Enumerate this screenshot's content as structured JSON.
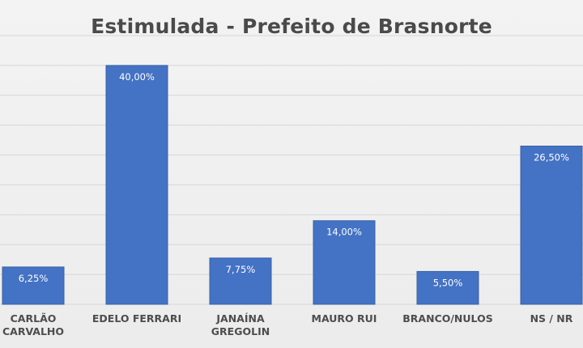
{
  "chart_data": {
    "type": "bar",
    "title": "Estimulada - Prefeito de Brasnorte",
    "categories": [
      [
        "CARLÃO",
        "CARVALHO"
      ],
      [
        "EDELO FERRARI"
      ],
      [
        "JANAÍNA",
        "GREGOLIN"
      ],
      [
        "MAURO RUI"
      ],
      [
        "BRANCO/NULOS"
      ],
      [
        "NS / NR"
      ]
    ],
    "values": [
      6.25,
      40.0,
      7.75,
      14.0,
      5.5,
      26.5
    ],
    "data_labels": [
      "6,25%",
      "40,00%",
      "7,75%",
      "14,00%",
      "5,50%",
      "26,50%"
    ],
    "ylim": [
      0,
      45
    ],
    "grid": true,
    "legend": "none",
    "colors": {
      "bar": "#4472c4",
      "bar_border": "#3a62a8",
      "grid": "#d6d6d6",
      "title": "#4a4a4a"
    }
  }
}
